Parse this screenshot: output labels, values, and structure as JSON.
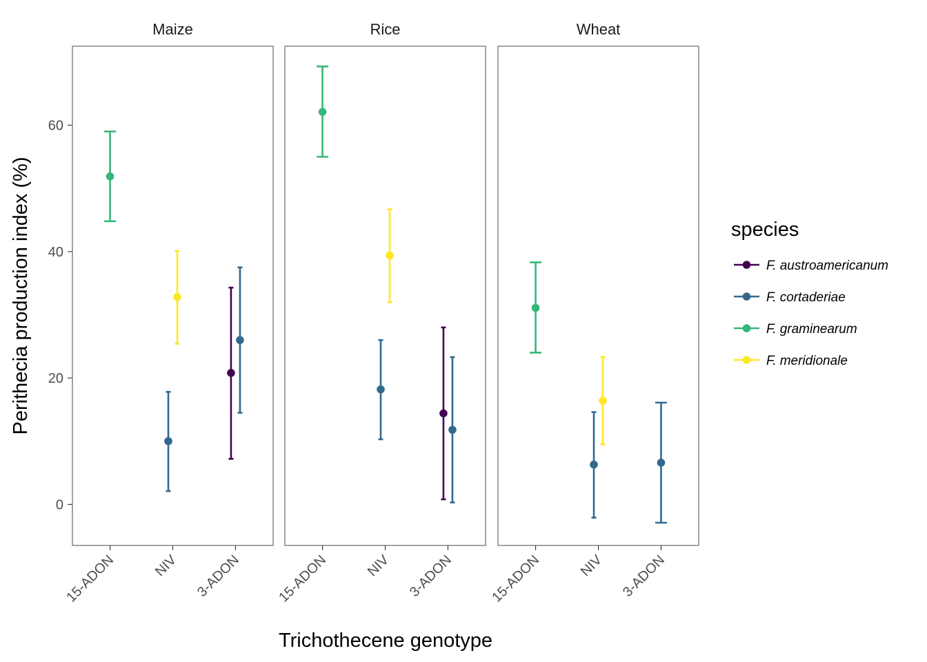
{
  "chart_data": {
    "type": "scatter",
    "subtype": "point-errorbar-faceted",
    "xlabel": "Trichothecene genotype",
    "ylabel": "Perithecia production index (%)",
    "ylim": [
      -6.5,
      72.5
    ],
    "yticks": [
      0,
      20,
      40,
      60
    ],
    "categories": [
      "15-ADON",
      "NIV",
      "3-ADON"
    ],
    "facets": [
      "Maize",
      "Rice",
      "Wheat"
    ],
    "grid": false,
    "legend": {
      "title": "species",
      "position": "right",
      "entries": [
        {
          "name": "F. austroamericanum",
          "color": "#440154"
        },
        {
          "name": "F. cortaderiae",
          "color": "#31688E"
        },
        {
          "name": "F. graminearum",
          "color": "#35B779"
        },
        {
          "name": "F. meridionale",
          "color": "#FDE725"
        }
      ]
    },
    "points": [
      {
        "facet": "Maize",
        "genotype": "15-ADON",
        "species": "F. graminearum",
        "y": 51.9,
        "ymin": 44.8,
        "ymax": 59.0
      },
      {
        "facet": "Maize",
        "genotype": "NIV",
        "species": "F. cortaderiae",
        "y": 10.0,
        "ymin": 2.1,
        "ymax": 17.8
      },
      {
        "facet": "Maize",
        "genotype": "NIV",
        "species": "F. meridionale",
        "y": 32.8,
        "ymin": 25.4,
        "ymax": 40.1
      },
      {
        "facet": "Maize",
        "genotype": "3-ADON",
        "species": "F. austroamericanum",
        "y": 20.8,
        "ymin": 7.2,
        "ymax": 34.3
      },
      {
        "facet": "Maize",
        "genotype": "3-ADON",
        "species": "F. cortaderiae",
        "y": 26.0,
        "ymin": 14.5,
        "ymax": 37.5
      },
      {
        "facet": "Rice",
        "genotype": "15-ADON",
        "species": "F. graminearum",
        "y": 62.1,
        "ymin": 55.0,
        "ymax": 69.3
      },
      {
        "facet": "Rice",
        "genotype": "NIV",
        "species": "F. cortaderiae",
        "y": 18.2,
        "ymin": 10.3,
        "ymax": 26.0
      },
      {
        "facet": "Rice",
        "genotype": "NIV",
        "species": "F. meridionale",
        "y": 39.4,
        "ymin": 32.0,
        "ymax": 46.7
      },
      {
        "facet": "Rice",
        "genotype": "3-ADON",
        "species": "F. austroamericanum",
        "y": 14.4,
        "ymin": 0.8,
        "ymax": 28.0
      },
      {
        "facet": "Rice",
        "genotype": "3-ADON",
        "species": "F. cortaderiae",
        "y": 11.8,
        "ymin": 0.3,
        "ymax": 23.3
      },
      {
        "facet": "Wheat",
        "genotype": "15-ADON",
        "species": "F. graminearum",
        "y": 31.1,
        "ymin": 24.0,
        "ymax": 38.3
      },
      {
        "facet": "Wheat",
        "genotype": "NIV",
        "species": "F. cortaderiae",
        "y": 6.3,
        "ymin": -2.1,
        "ymax": 14.6
      },
      {
        "facet": "Wheat",
        "genotype": "NIV",
        "species": "F. meridionale",
        "y": 16.4,
        "ymin": 9.5,
        "ymax": 23.3
      },
      {
        "facet": "Wheat",
        "genotype": "3-ADON",
        "species": "F. cortaderiae",
        "y": 6.6,
        "ymin": -2.9,
        "ymax": 16.1
      }
    ]
  }
}
